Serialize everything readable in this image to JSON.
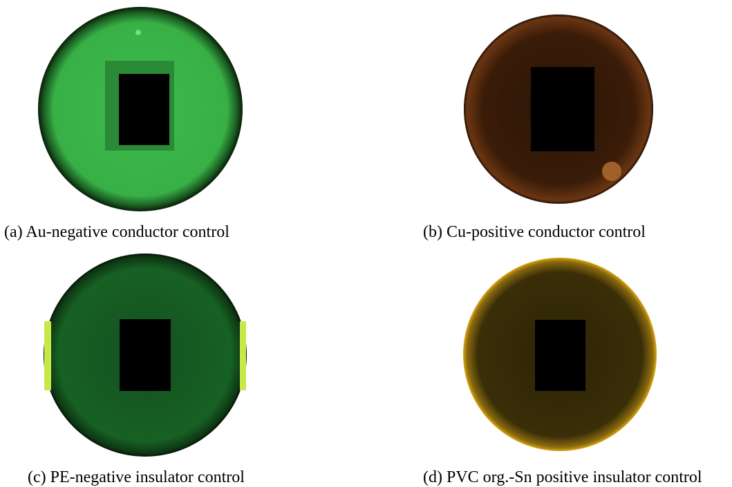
{
  "panels": [
    {
      "caption": "(a) Au-negative conductor control"
    },
    {
      "caption": "(b) Cu-positive conductor control"
    },
    {
      "caption": "(c) PE-negative insulator control"
    },
    {
      "caption": "(d) PVC org.-Sn positive insulator control"
    }
  ]
}
